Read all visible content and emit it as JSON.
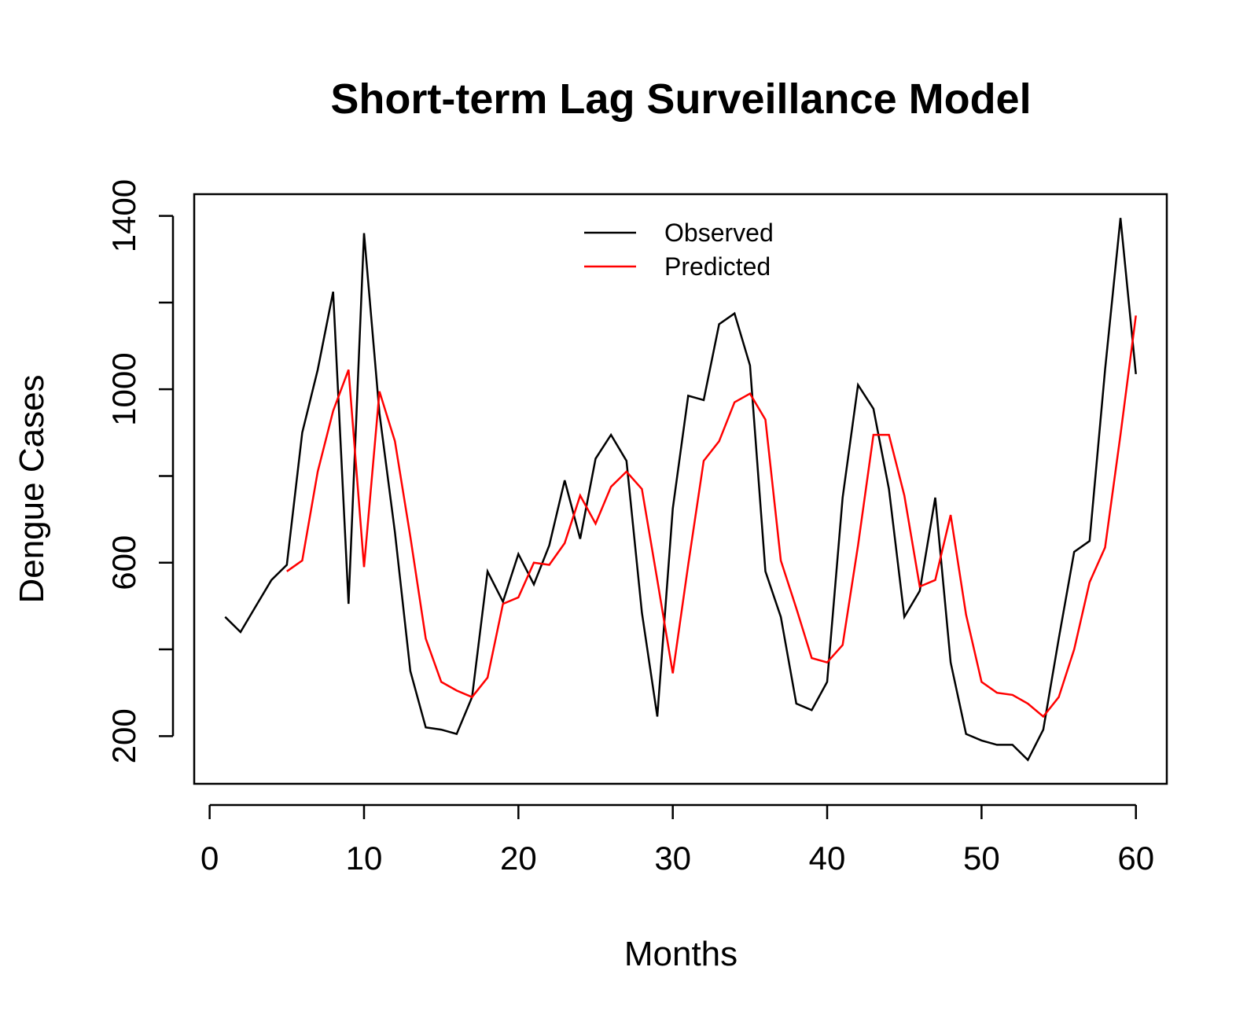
{
  "chart_data": {
    "type": "line",
    "title": "Short-term Lag Surveillance Model",
    "xlabel": "Months",
    "ylabel": "Dengue Cases",
    "xlim": [
      -1,
      62
    ],
    "ylim": [
      90,
      1450
    ],
    "x_ticks": [
      0,
      10,
      20,
      30,
      40,
      50,
      60
    ],
    "y_ticks": [
      200,
      600,
      1000,
      1400
    ],
    "y_minor_ticks": [
      200,
      400,
      600,
      800,
      1000,
      1200,
      1400
    ],
    "legend_position": "top-center",
    "series": [
      {
        "name": "Observed",
        "color": "#000000",
        "x": [
          1,
          2,
          3,
          4,
          5,
          6,
          7,
          8,
          9,
          10,
          11,
          12,
          13,
          14,
          15,
          16,
          17,
          18,
          19,
          20,
          21,
          22,
          23,
          24,
          25,
          26,
          27,
          28,
          29,
          30,
          31,
          32,
          33,
          34,
          35,
          36,
          37,
          38,
          39,
          40,
          41,
          42,
          43,
          44,
          45,
          46,
          47,
          48,
          49,
          50,
          51,
          52,
          53,
          54,
          55,
          56,
          57,
          58,
          59,
          60
        ],
        "values": [
          475,
          440,
          500,
          560,
          595,
          900,
          1045,
          1225,
          505,
          1360,
          945,
          670,
          350,
          220,
          215,
          205,
          290,
          580,
          510,
          620,
          550,
          640,
          790,
          655,
          840,
          895,
          835,
          485,
          245,
          725,
          985,
          975,
          1150,
          1175,
          1055,
          580,
          475,
          275,
          260,
          325,
          750,
          1010,
          955,
          770,
          475,
          535,
          750,
          370,
          205,
          190,
          180,
          180,
          145,
          215,
          425,
          625,
          650,
          1045,
          1395,
          1035
        ]
      },
      {
        "name": "Predicted",
        "color": "#ff0000",
        "x": [
          5,
          6,
          7,
          8,
          9,
          10,
          11,
          12,
          13,
          14,
          15,
          16,
          17,
          18,
          19,
          20,
          21,
          22,
          23,
          24,
          25,
          26,
          27,
          28,
          29,
          30,
          31,
          32,
          33,
          34,
          35,
          36,
          37,
          38,
          39,
          40,
          41,
          42,
          43,
          44,
          45,
          46,
          47,
          48,
          49,
          50,
          51,
          52,
          53,
          54,
          55,
          56,
          57,
          58,
          59,
          60
        ],
        "values": [
          580,
          605,
          810,
          950,
          1045,
          590,
          995,
          880,
          660,
          425,
          325,
          305,
          290,
          335,
          505,
          520,
          600,
          595,
          645,
          755,
          690,
          775,
          810,
          770,
          560,
          345,
          595,
          835,
          880,
          970,
          990,
          930,
          605,
          495,
          380,
          370,
          410,
          640,
          895,
          895,
          755,
          545,
          560,
          710,
          480,
          325,
          300,
          295,
          275,
          245,
          290,
          400,
          555,
          635,
          895,
          1170
        ]
      }
    ]
  }
}
